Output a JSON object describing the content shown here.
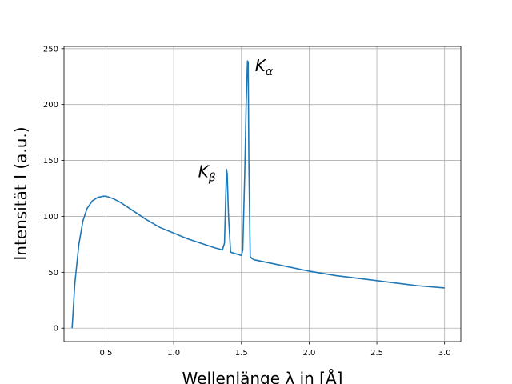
{
  "chart_data": {
    "type": "line",
    "xlabel": "Wellenlänge λ in [Å]",
    "ylabel": "Intensität I (a.u.)",
    "xlim": [
      0.19,
      3.12
    ],
    "ylim": [
      -12,
      252
    ],
    "xticks": [
      0.5,
      1.0,
      1.5,
      2.0,
      2.5,
      3.0
    ],
    "xtick_labels": [
      "0.5",
      "1.0",
      "1.5",
      "2.0",
      "2.5",
      "3.0"
    ],
    "yticks": [
      0,
      50,
      100,
      150,
      200,
      250
    ],
    "ytick_labels": [
      "0",
      "50",
      "100",
      "150",
      "200",
      "250"
    ],
    "grid": true,
    "series": [
      {
        "color": "#1f77b4",
        "x": [
          0.25,
          0.27,
          0.3,
          0.33,
          0.36,
          0.4,
          0.44,
          0.48,
          0.5,
          0.55,
          0.6,
          0.7,
          0.8,
          0.9,
          1.0,
          1.1,
          1.2,
          1.3,
          1.36,
          1.375,
          1.385,
          1.39,
          1.395,
          1.405,
          1.42,
          1.5,
          1.51,
          1.525,
          1.535,
          1.545,
          1.55,
          1.555,
          1.565,
          1.58,
          1.6,
          1.8,
          2.0,
          2.2,
          2.4,
          2.6,
          2.8,
          3.0
        ],
        "y": [
          0,
          40,
          75,
          96,
          107,
          114,
          117,
          118,
          118,
          116,
          113,
          105,
          97,
          90,
          85,
          80,
          76,
          72,
          70,
          76,
          120,
          142,
          138,
          100,
          68,
          65,
          70,
          140,
          200,
          239,
          238,
          150,
          64,
          62,
          61,
          56,
          51,
          47,
          44,
          41,
          38,
          36
        ]
      }
    ],
    "annotations": [
      {
        "text": "K",
        "sub": "β",
        "x": 1.18,
        "y": 135
      },
      {
        "text": "K",
        "sub": "α",
        "x": 1.6,
        "y": 230
      }
    ]
  }
}
